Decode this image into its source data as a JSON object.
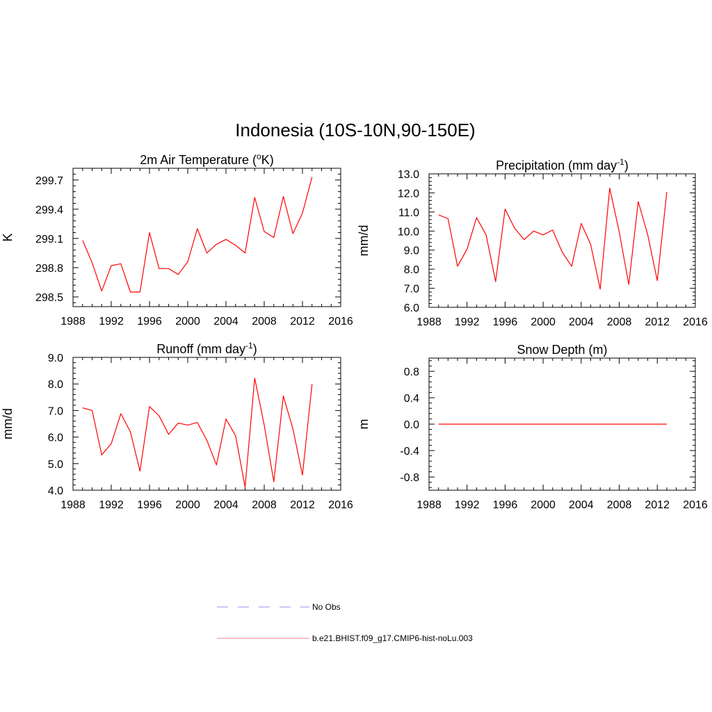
{
  "figure_title": "Indonesia (10S-10N,90-150E)",
  "chart_data": [
    {
      "type": "line",
      "title": "2m Air Temperature (",
      "title_sup": "o",
      "title_after": "K)",
      "ylabel": "K",
      "xlim": [
        1988,
        2016
      ],
      "ylim": [
        298.4,
        299.82
      ],
      "x_ticks": [
        1988,
        1992,
        1996,
        2000,
        2004,
        2008,
        2012,
        2016
      ],
      "y_ticks": [
        298.5,
        298.8,
        299.1,
        299.4,
        299.7
      ],
      "y_tick_labels": [
        "298.5",
        "298.8",
        "299.1",
        "299.4",
        "299.7"
      ],
      "series": [
        {
          "color": "#ff0000",
          "x": [
            1989,
            1990,
            1991,
            1992,
            1993,
            1994,
            1995,
            1996,
            1997,
            1998,
            1999,
            2000,
            2001,
            2002,
            2003,
            2004,
            2005,
            2006,
            2007,
            2008,
            2009,
            2010,
            2011,
            2012,
            2013
          ],
          "values": [
            299.08,
            298.85,
            298.56,
            298.82,
            298.84,
            298.55,
            298.55,
            299.16,
            298.79,
            298.79,
            298.73,
            298.86,
            299.2,
            298.95,
            299.04,
            299.09,
            299.03,
            298.95,
            299.52,
            299.17,
            299.11,
            299.53,
            299.15,
            299.36,
            299.73
          ]
        }
      ]
    },
    {
      "type": "line",
      "title": "Precipitation (mm day",
      "title_sup": "-1",
      "title_after": ")",
      "ylabel": "mm/d",
      "xlim": [
        1988,
        2016
      ],
      "ylim": [
        6.0,
        13.0
      ],
      "x_ticks": [
        1988,
        1992,
        1996,
        2000,
        2004,
        2008,
        2012,
        2016
      ],
      "y_ticks": [
        6,
        7,
        8,
        9,
        10,
        11,
        12,
        13
      ],
      "y_tick_labels": [
        "6.0",
        "7.0",
        "8.0",
        "9.0",
        "10.0",
        "11.0",
        "12.0",
        "13.0"
      ],
      "series": [
        {
          "color": "#ff0000",
          "x": [
            1989,
            1990,
            1991,
            1992,
            1993,
            1994,
            1995,
            1996,
            1997,
            1998,
            1999,
            2000,
            2001,
            2002,
            2003,
            2004,
            2005,
            2006,
            2007,
            2008,
            2009,
            2010,
            2011,
            2012,
            2013
          ],
          "values": [
            10.85,
            10.65,
            8.15,
            9.05,
            10.7,
            9.8,
            7.35,
            11.15,
            10.15,
            9.55,
            10.0,
            9.8,
            10.05,
            8.9,
            8.15,
            10.4,
            9.3,
            6.95,
            12.25,
            9.95,
            7.2,
            11.55,
            9.8,
            7.4,
            12.05
          ]
        }
      ]
    },
    {
      "type": "line",
      "title": "Runoff (mm day",
      "title_sup": "-1",
      "title_after": ")",
      "ylabel": "mm/d",
      "xlim": [
        1988,
        2016
      ],
      "ylim": [
        4.0,
        9.0
      ],
      "x_ticks": [
        1988,
        1992,
        1996,
        2000,
        2004,
        2008,
        2012,
        2016
      ],
      "y_ticks": [
        4,
        5,
        6,
        7,
        8,
        9
      ],
      "y_tick_labels": [
        "4.0",
        "5.0",
        "6.0",
        "7.0",
        "8.0",
        "9.0"
      ],
      "series": [
        {
          "color": "#ff0000",
          "x": [
            1989,
            1990,
            1991,
            1992,
            1993,
            1994,
            1995,
            1996,
            1997,
            1998,
            1999,
            2000,
            2001,
            2002,
            2003,
            2004,
            2005,
            2006,
            2007,
            2008,
            2009,
            2010,
            2011,
            2012,
            2013
          ],
          "values": [
            7.1,
            7.0,
            5.33,
            5.75,
            6.88,
            6.2,
            4.72,
            7.15,
            6.8,
            6.1,
            6.53,
            6.45,
            6.55,
            5.88,
            4.95,
            6.68,
            6.05,
            4.12,
            8.22,
            6.45,
            4.32,
            7.55,
            6.3,
            4.57,
            8.0
          ]
        }
      ]
    },
    {
      "type": "line",
      "title": "Snow Depth (m)",
      "title_sup": "",
      "title_after": "",
      "ylabel": "m",
      "xlim": [
        1988,
        2016
      ],
      "ylim": [
        -1.0,
        1.0
      ],
      "x_ticks": [
        1988,
        1992,
        1996,
        2000,
        2004,
        2008,
        2012,
        2016
      ],
      "y_ticks": [
        -0.8,
        -0.4,
        0.0,
        0.4,
        0.8
      ],
      "y_tick_labels": [
        "-0.8",
        "-0.4",
        "0.0",
        "0.4",
        "0.8"
      ],
      "series": [
        {
          "color": "#ff0000",
          "x": [
            1989,
            1990,
            1991,
            1992,
            1993,
            1994,
            1995,
            1996,
            1997,
            1998,
            1999,
            2000,
            2001,
            2002,
            2003,
            2004,
            2005,
            2006,
            2007,
            2008,
            2009,
            2010,
            2011,
            2012,
            2013
          ],
          "values": [
            0,
            0,
            0,
            0,
            0,
            0,
            0,
            0,
            0,
            0,
            0,
            0,
            0,
            0,
            0,
            0,
            0,
            0,
            0,
            0,
            0,
            0,
            0,
            0,
            0
          ]
        }
      ]
    }
  ],
  "legend": {
    "items": [
      {
        "label": "No Obs",
        "color": "#aaaaee",
        "style": "dashed"
      },
      {
        "label": "b.e21.BHIST.f09_g17.CMIP6-hist-noLu.003",
        "color": "#ff9999",
        "style": "solid"
      }
    ]
  }
}
